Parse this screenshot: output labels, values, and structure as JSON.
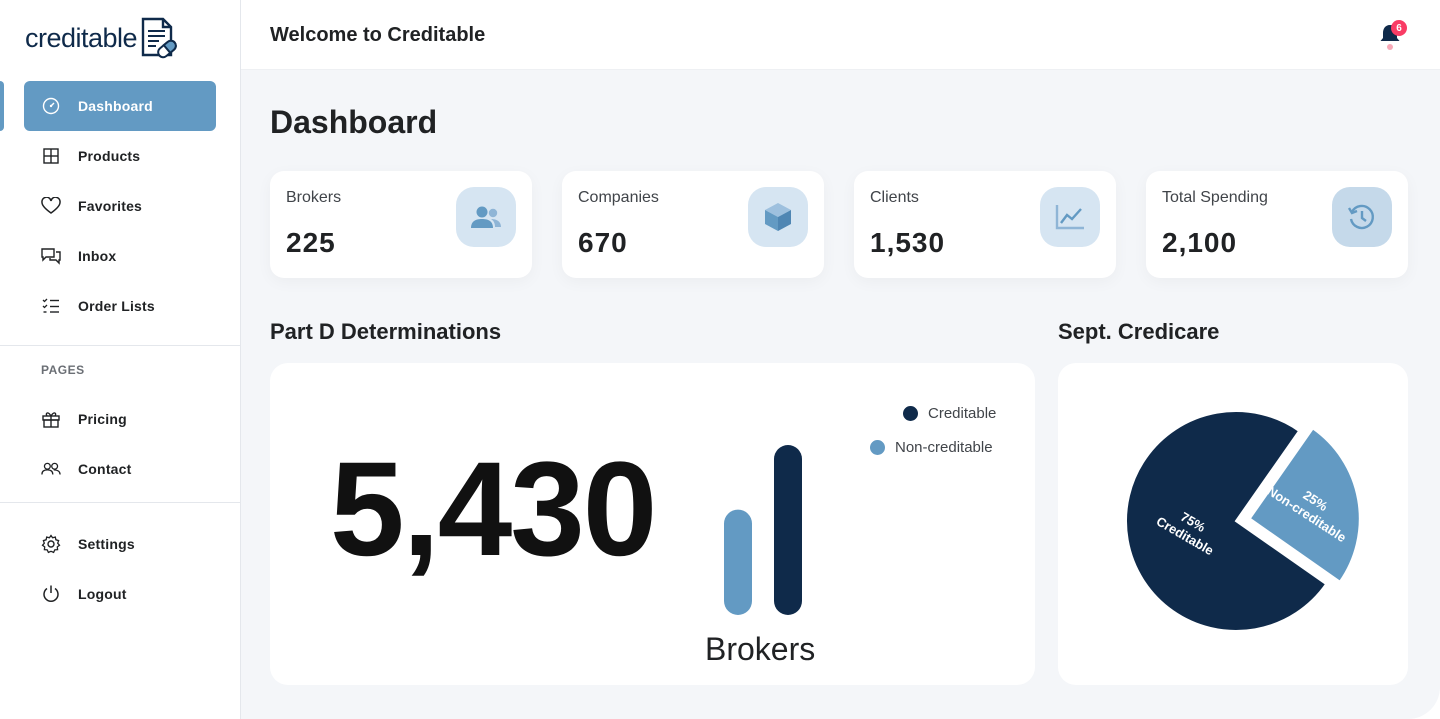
{
  "app": {
    "logo_text": "creditable"
  },
  "header": {
    "title": "Welcome to Creditable",
    "notification_count": "6"
  },
  "sidebar": {
    "items": [
      {
        "label": "Dashboard",
        "icon": "dashboard-icon",
        "active": true
      },
      {
        "label": "Products",
        "icon": "grid-icon"
      },
      {
        "label": "Favorites",
        "icon": "heart-icon"
      },
      {
        "label": "Inbox",
        "icon": "chat-icon"
      },
      {
        "label": "Order Lists",
        "icon": "checklist-icon"
      }
    ],
    "pages_label": "PAGES",
    "pages": [
      {
        "label": "Pricing",
        "icon": "gift-icon"
      },
      {
        "label": "Contact",
        "icon": "users-icon"
      }
    ],
    "bottom": [
      {
        "label": "Settings",
        "icon": "gear-icon"
      },
      {
        "label": "Logout",
        "icon": "power-icon"
      }
    ]
  },
  "main": {
    "page_title": "Dashboard",
    "stats": [
      {
        "label": "Brokers",
        "value": "225",
        "icon": "users-icon"
      },
      {
        "label": "Companies",
        "value": "670",
        "icon": "cube-icon"
      },
      {
        "label": "Clients",
        "value": "1,530",
        "icon": "line-chart-icon"
      },
      {
        "label": "Total Spending",
        "value": "2,100",
        "icon": "history-icon"
      }
    ],
    "determinations": {
      "title": "Part D Determinations",
      "big_number": "5,430",
      "bars_label": "Brokers"
    },
    "credicare": {
      "title": "Sept. Credicare"
    }
  },
  "colors": {
    "accent": "#639ac3",
    "dark": "#0f2a4a",
    "light": "#639ac3",
    "badge": "#f93c65"
  },
  "chart_data": [
    {
      "type": "bar",
      "categories": [
        "Non-creditable",
        "Creditable"
      ],
      "values": [
        0.62,
        1.0
      ],
      "legend": [
        "Creditable",
        "Non-creditable"
      ],
      "legend_placement": "top-right",
      "colors": [
        "#639ac3",
        "#0f2a4a"
      ]
    },
    {
      "type": "pie",
      "labels": [
        "Creditable",
        "Non-creditable"
      ],
      "values": [
        75,
        25
      ],
      "percent_labels": [
        "75%",
        "25%"
      ],
      "colors": [
        "#0f2a4a",
        "#639ac3"
      ]
    }
  ]
}
